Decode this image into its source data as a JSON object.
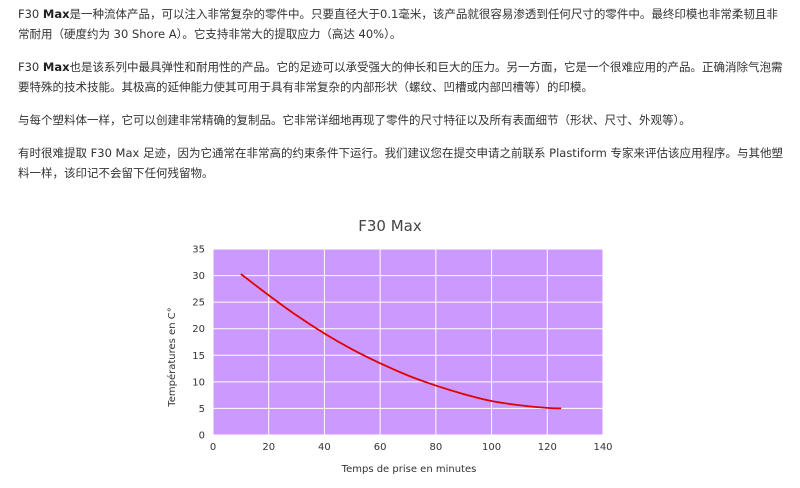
{
  "paragraphs": [
    {
      "lead": "F30 ",
      "bold": "Max",
      "rest": "是一种流体产品，可以注入非常复杂的零件中。只要直径大于0.1毫米，该产品就很容易渗透到任何尺寸的零件中。最终印模也非常柔韧且非常耐用（硬度约为 30 Shore A）。它支持非常大的提取应力（高达 40%）。"
    },
    {
      "lead": "F30 ",
      "bold": "Max",
      "rest": "也是该系列中最具弹性和耐用性的产品。它的足迹可以承受强大的伸长和巨大的压力。另一方面，它是一个很难应用的产品。正确消除气泡需要特殊的技术技能。其极高的延伸能力使其可用于具有非常复杂的内部形状（螺纹、凹槽或内部凹槽等）的印模。"
    },
    {
      "lead": "",
      "bold": "",
      "rest": "与每个塑料体一样，它可以创建非常精确的复制品。它非常详细地再现了零件的尺寸特征以及所有表面细节（形状、尺寸、外观等）。"
    },
    {
      "lead": "",
      "bold": "",
      "rest": "有时很难提取 F30 Max 足迹，因为它通常在非常高的约束条件下运行。我们建议您在提交申请之前联系 Plastiform 专家来评估该应用程序。与其他塑料一样，该印记不会留下任何残留物。"
    }
  ],
  "chart_data": {
    "type": "line",
    "title": "F30 Max",
    "xlabel": "Temps de prise en minutes",
    "ylabel": "Températures en C°",
    "xlim": [
      0,
      140
    ],
    "ylim": [
      0,
      35
    ],
    "xticks": [
      0,
      20,
      40,
      60,
      80,
      100,
      120,
      140
    ],
    "yticks": [
      0,
      5,
      10,
      15,
      20,
      25,
      30,
      35
    ],
    "grid": true,
    "plot_background": "#cc99ff",
    "series": [
      {
        "color": "#e00000",
        "x": [
          10,
          20,
          30,
          40,
          50,
          60,
          70,
          80,
          90,
          100,
          110,
          120,
          125
        ],
        "y": [
          30.3,
          26.3,
          22.5,
          19.1,
          16.1,
          13.5,
          11.2,
          9.3,
          7.7,
          6.4,
          5.6,
          5.1,
          5.0
        ]
      }
    ]
  }
}
